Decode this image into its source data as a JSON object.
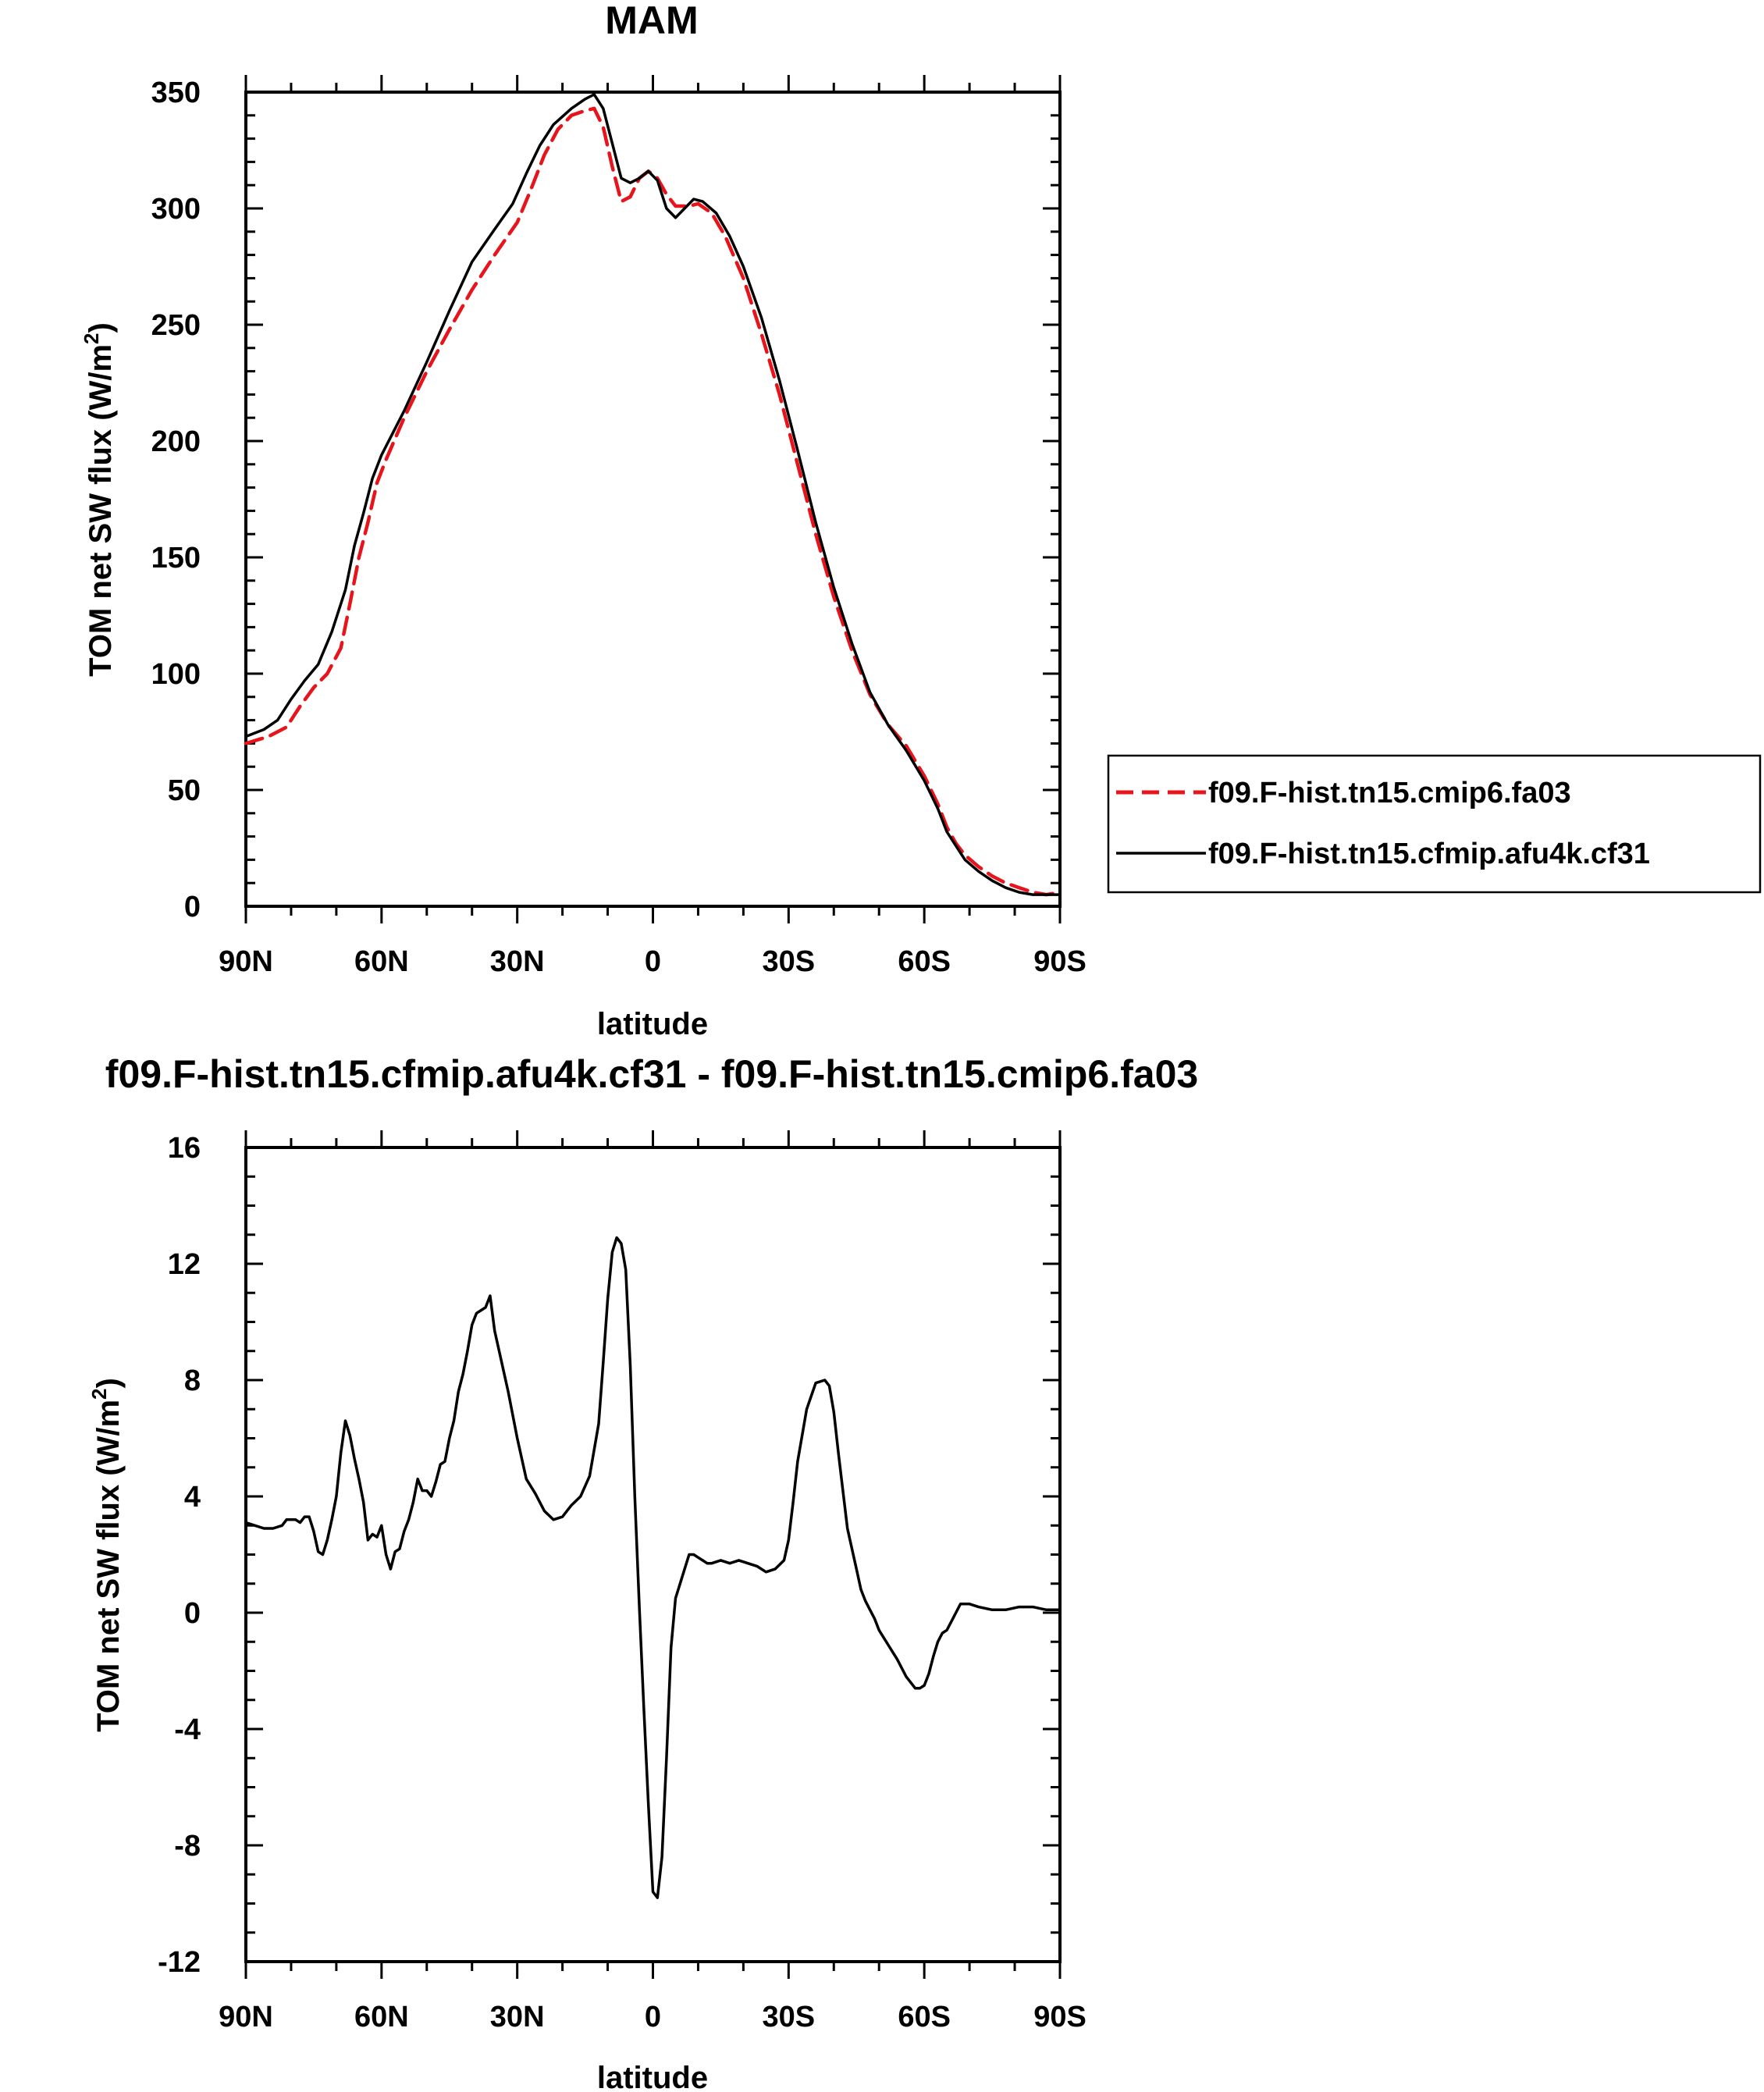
{
  "chart_data": [
    {
      "type": "line",
      "title": "MAM",
      "xlabel": "latitude",
      "ylabel": "TOM net SW flux (W/m",
      "ylabel_superscript": "2",
      "ylabel_suffix": ")",
      "xlim": [
        90,
        -90
      ],
      "ylim": [
        0,
        350
      ],
      "x_tick_values": [
        90,
        60,
        30,
        0,
        -30,
        -60,
        -90
      ],
      "x_tick_labels": [
        "90N",
        "60N",
        "30N",
        "0",
        "30S",
        "60S",
        "90S"
      ],
      "y_tick_values": [
        0,
        50,
        100,
        150,
        200,
        250,
        300,
        350
      ],
      "y_tick_labels": [
        "0",
        "50",
        "100",
        "150",
        "200",
        "250",
        "300",
        "350"
      ],
      "legend": {
        "placement": "right",
        "entries": [
          "f09.F-hist.tn15.cmip6.fa03",
          "f09.F-hist.tn15.cfmip.afu4k.cf31"
        ]
      },
      "series": [
        {
          "name": "f09.F-hist.tn15.cmip6.fa03",
          "color": "#e8141b",
          "style": "dashed",
          "x": [
            90,
            85,
            81,
            78,
            75,
            72,
            69,
            67,
            65,
            63,
            61,
            59,
            55,
            50,
            45,
            40,
            35,
            30,
            27,
            24,
            21,
            18,
            15,
            13,
            11,
            9,
            7,
            5,
            3,
            1,
            -1,
            -3,
            -5,
            -8,
            -10,
            -13,
            -16,
            -20,
            -24,
            -28,
            -32,
            -36,
            -40,
            -44,
            -48,
            -52,
            -56,
            -60,
            -63,
            -65,
            -67,
            -69,
            -72,
            -75,
            -78,
            -81,
            -84,
            -87,
            -90
          ],
          "values": [
            70,
            73,
            77,
            86,
            94,
            100,
            111,
            130,
            150,
            165,
            182,
            192,
            210,
            230,
            248,
            265,
            280,
            294,
            308,
            323,
            334,
            340,
            342,
            343,
            335,
            318,
            303,
            305,
            313,
            316,
            313,
            306,
            301,
            301,
            302,
            298,
            288,
            270,
            246,
            220,
            190,
            160,
            133,
            110,
            91,
            78,
            69,
            56,
            44,
            34,
            27,
            22,
            17,
            13,
            10,
            8,
            6,
            5,
            6
          ]
        },
        {
          "name": "f09.F-hist.tn15.cfmip.afu4k.cf31",
          "color": "#000000",
          "style": "solid",
          "x": [
            90,
            86,
            83,
            80,
            77,
            74,
            71,
            68,
            66,
            64,
            62,
            60,
            55,
            50,
            45,
            40,
            35,
            31,
            28,
            25,
            22,
            18,
            15,
            13,
            11,
            9,
            7,
            5,
            3,
            1,
            -1,
            -3,
            -5,
            -7,
            -9,
            -11,
            -14,
            -17,
            -20,
            -24,
            -28,
            -32,
            -36,
            -40,
            -44,
            -48,
            -52,
            -56,
            -60,
            -63,
            -65,
            -67,
            -69,
            -72,
            -75,
            -78,
            -81,
            -84,
            -87,
            -90
          ],
          "values": [
            73,
            76,
            80,
            89,
            97,
            104,
            118,
            136,
            155,
            169,
            184,
            194,
            213,
            234,
            256,
            277,
            291,
            302,
            315,
            327,
            336,
            343,
            347,
            349,
            343,
            328,
            313,
            311,
            313,
            316,
            312,
            300,
            296,
            300,
            304,
            303,
            298,
            288,
            275,
            253,
            226,
            196,
            165,
            137,
            113,
            92,
            78,
            67,
            54,
            42,
            32,
            26,
            20,
            15,
            11,
            8,
            6,
            5,
            5,
            5
          ]
        }
      ]
    },
    {
      "type": "line",
      "title": "f09.F-hist.tn15.cfmip.afu4k.cf31 - f09.F-hist.tn15.cmip6.fa03",
      "xlabel": "latitude",
      "ylabel": "TOM net SW flux (W/m",
      "ylabel_superscript": "2",
      "ylabel_suffix": ")",
      "xlim": [
        90,
        -90
      ],
      "ylim": [
        -12,
        16
      ],
      "x_tick_values": [
        90,
        60,
        30,
        0,
        -30,
        -60,
        -90
      ],
      "x_tick_labels": [
        "90N",
        "60N",
        "30N",
        "0",
        "30S",
        "60S",
        "90S"
      ],
      "y_tick_values": [
        -12,
        -8,
        -4,
        0,
        4,
        8,
        12,
        16
      ],
      "y_tick_labels": [
        "-12",
        "-8",
        "-4",
        "0",
        "4",
        "8",
        "12",
        "16"
      ],
      "series": [
        {
          "name": "f09.F-hist.tn15.cfmip.afu4k.cf31 - f09.F-hist.tn15.cmip6.fa03",
          "color": "#000000",
          "style": "solid",
          "x": [
            90,
            88,
            86,
            84,
            82,
            81,
            80,
            79,
            78,
            77,
            76,
            75,
            74,
            73,
            72,
            71,
            70,
            69,
            68,
            67,
            66,
            65,
            64,
            63,
            62,
            61,
            60,
            59,
            58,
            57,
            56,
            55,
            54,
            53,
            52,
            51,
            50,
            49,
            48,
            47,
            46,
            45,
            44,
            43,
            42,
            41,
            40,
            39,
            38,
            37,
            36,
            35,
            34,
            32,
            30,
            28,
            26,
            24,
            22,
            20,
            19,
            18,
            16,
            14,
            12,
            11,
            10,
            9,
            8,
            7,
            6,
            5,
            4,
            3,
            2,
            1,
            0,
            -1,
            -2,
            -3,
            -4,
            -5,
            -6,
            -7,
            -8,
            -9,
            -10,
            -11,
            -12,
            -13,
            -15,
            -17,
            -19,
            -21,
            -23,
            -25,
            -27,
            -29,
            -30,
            -31,
            -32,
            -34,
            -36,
            -38,
            -39,
            -40,
            -41,
            -42,
            -43,
            -44,
            -45,
            -46,
            -47,
            -48,
            -49,
            -50,
            -52,
            -54,
            -56,
            -58,
            -59,
            -60,
            -61,
            -62,
            -63,
            -64,
            -65,
            -66,
            -67,
            -68,
            -69,
            -70,
            -72,
            -75,
            -78,
            -81,
            -84,
            -87,
            -90
          ],
          "values": [
            3.1,
            3.0,
            2.9,
            2.9,
            3.0,
            3.2,
            3.2,
            3.2,
            3.1,
            3.3,
            3.3,
            2.8,
            2.1,
            2.0,
            2.5,
            3.2,
            4.0,
            5.5,
            6.6,
            6.1,
            5.3,
            4.6,
            3.8,
            2.5,
            2.7,
            2.6,
            3.0,
            2.0,
            1.5,
            2.1,
            2.2,
            2.8,
            3.2,
            3.8,
            4.6,
            4.2,
            4.2,
            4.0,
            4.5,
            5.1,
            5.2,
            6.0,
            6.6,
            7.6,
            8.2,
            9.0,
            9.9,
            10.3,
            10.4,
            10.5,
            10.9,
            9.7,
            9.0,
            7.6,
            6.0,
            4.6,
            4.1,
            3.5,
            3.2,
            3.3,
            3.5,
            3.7,
            4.0,
            4.7,
            6.5,
            8.6,
            10.8,
            12.4,
            12.9,
            12.7,
            11.8,
            8.5,
            4.0,
            0.2,
            -3.3,
            -6.6,
            -9.6,
            -9.8,
            -8.4,
            -5.0,
            -1.2,
            0.5,
            1.0,
            1.5,
            2.0,
            2.0,
            1.9,
            1.8,
            1.7,
            1.7,
            1.8,
            1.7,
            1.8,
            1.7,
            1.6,
            1.4,
            1.5,
            1.8,
            2.5,
            3.8,
            5.2,
            7.0,
            7.9,
            8.0,
            7.8,
            6.9,
            5.5,
            4.2,
            2.9,
            2.2,
            1.5,
            0.8,
            0.4,
            0.1,
            -0.2,
            -0.6,
            -1.1,
            -1.6,
            -2.2,
            -2.6,
            -2.6,
            -2.5,
            -2.1,
            -1.5,
            -1.0,
            -0.7,
            -0.6,
            -0.3,
            0.0,
            0.3,
            0.3,
            0.3,
            0.2,
            0.1,
            0.1,
            0.2,
            0.2,
            0.1,
            0.1
          ]
        }
      ]
    }
  ]
}
